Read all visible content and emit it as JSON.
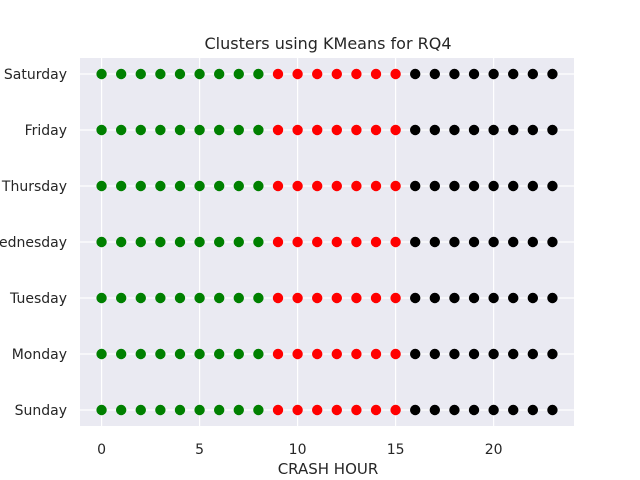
{
  "chart_data": {
    "type": "scatter",
    "title": "Clusters using KMeans for RQ4",
    "xlabel": "CRASH HOUR",
    "ylabel": "",
    "x_ticks": [
      0,
      5,
      10,
      15,
      20
    ],
    "xlim": [
      -1.1,
      24.1
    ],
    "y_categories": [
      "Sunday",
      "Monday",
      "Tuesday",
      "Wednesday",
      "Thursday",
      "Friday",
      "Saturday"
    ],
    "x": [
      0,
      1,
      2,
      3,
      4,
      5,
      6,
      7,
      8,
      9,
      10,
      11,
      12,
      13,
      14,
      15,
      16,
      17,
      18,
      19,
      20,
      21,
      22,
      23
    ],
    "clusters": [
      {
        "hours": [
          0,
          1,
          2,
          3,
          4,
          5,
          6,
          7,
          8
        ],
        "color": "#008000"
      },
      {
        "hours": [
          9,
          10,
          11,
          12,
          13,
          14,
          15
        ],
        "color": "#ff0000"
      },
      {
        "hours": [
          16,
          17,
          18,
          19,
          20,
          21,
          22,
          23
        ],
        "color": "#000000"
      }
    ],
    "background": "#eaeaf2",
    "grid": true
  }
}
